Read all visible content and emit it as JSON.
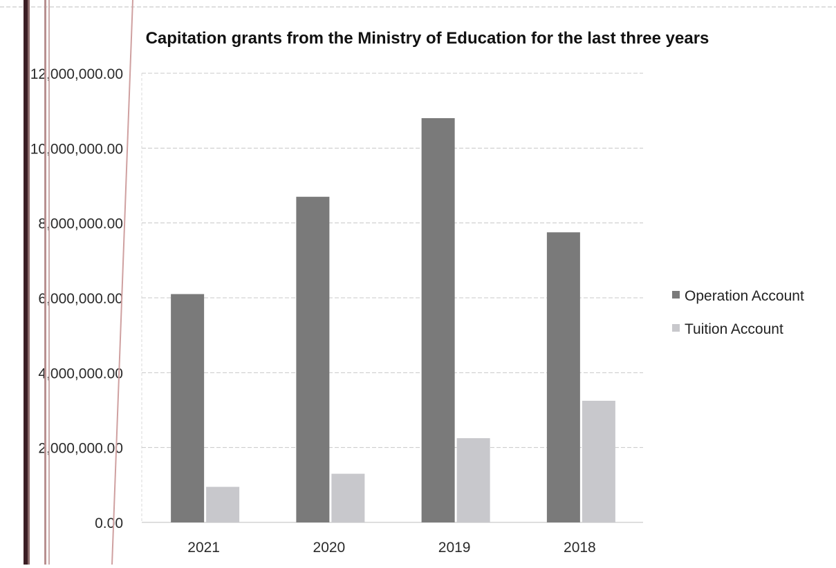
{
  "chart_data": {
    "type": "bar",
    "title": "Capitation grants from the Ministry of Education for the last three years",
    "categories": [
      "2021",
      "2020",
      "2019",
      "2018"
    ],
    "series": [
      {
        "name": "Operation Account",
        "values": [
          6100000,
          8700000,
          10800000,
          7750000
        ],
        "color": "#7a7a7a"
      },
      {
        "name": "Tuition Account",
        "values": [
          950000,
          1300000,
          2250000,
          3250000
        ],
        "color": "#c8c8cc"
      }
    ],
    "ylim": [
      0,
      12000000
    ],
    "yticks": [
      "0.00",
      "2,000,000.00",
      "4,000,000.00",
      "6,000,000.00",
      "8,000,000.00",
      "10,000,000.00",
      "12,000,000.00"
    ],
    "xlabel": "",
    "ylabel": "",
    "grid": true,
    "legend_position": "right"
  }
}
